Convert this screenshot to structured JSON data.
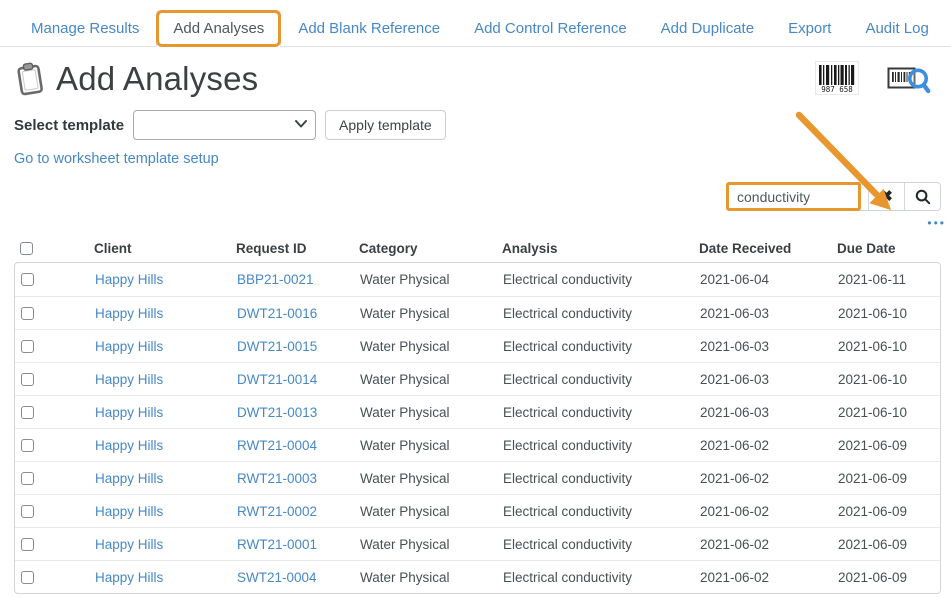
{
  "colors": {
    "link": "#4788c7",
    "annotation": "#e8962e",
    "text": "#494f54"
  },
  "tabs": {
    "items": [
      {
        "label": "Manage Results",
        "active": false
      },
      {
        "label": "Add Analyses",
        "active": true
      },
      {
        "label": "Add Blank Reference",
        "active": false
      },
      {
        "label": "Add Control Reference",
        "active": false
      },
      {
        "label": "Add Duplicate",
        "active": false
      },
      {
        "label": "Export",
        "active": false
      },
      {
        "label": "Audit Log",
        "active": false
      }
    ]
  },
  "header": {
    "title": "Add Analyses",
    "barcode_value": "987 658"
  },
  "template_bar": {
    "label": "Select template",
    "selected_option": "",
    "apply_button_label": "Apply template",
    "setup_link_label": "Go to worksheet template setup"
  },
  "search": {
    "value": "conductivity",
    "clear_icon_glyph": "✖",
    "more_toggle_glyph": "•••"
  },
  "listing": {
    "columns": [
      "Client",
      "Request ID",
      "Category",
      "Analysis",
      "Date Received",
      "Due Date"
    ],
    "rows": [
      {
        "client": "Happy Hills",
        "request_id": "BBP21-0021",
        "category": "Water Physical",
        "analysis": "Electrical conductivity",
        "date_received": "2021-06-04",
        "due_date": "2021-06-11"
      },
      {
        "client": "Happy Hills",
        "request_id": "DWT21-0016",
        "category": "Water Physical",
        "analysis": "Electrical conductivity",
        "date_received": "2021-06-03",
        "due_date": "2021-06-10"
      },
      {
        "client": "Happy Hills",
        "request_id": "DWT21-0015",
        "category": "Water Physical",
        "analysis": "Electrical conductivity",
        "date_received": "2021-06-03",
        "due_date": "2021-06-10"
      },
      {
        "client": "Happy Hills",
        "request_id": "DWT21-0014",
        "category": "Water Physical",
        "analysis": "Electrical conductivity",
        "date_received": "2021-06-03",
        "due_date": "2021-06-10"
      },
      {
        "client": "Happy Hills",
        "request_id": "DWT21-0013",
        "category": "Water Physical",
        "analysis": "Electrical conductivity",
        "date_received": "2021-06-03",
        "due_date": "2021-06-10"
      },
      {
        "client": "Happy Hills",
        "request_id": "RWT21-0004",
        "category": "Water Physical",
        "analysis": "Electrical conductivity",
        "date_received": "2021-06-02",
        "due_date": "2021-06-09"
      },
      {
        "client": "Happy Hills",
        "request_id": "RWT21-0003",
        "category": "Water Physical",
        "analysis": "Electrical conductivity",
        "date_received": "2021-06-02",
        "due_date": "2021-06-09"
      },
      {
        "client": "Happy Hills",
        "request_id": "RWT21-0002",
        "category": "Water Physical",
        "analysis": "Electrical conductivity",
        "date_received": "2021-06-02",
        "due_date": "2021-06-09"
      },
      {
        "client": "Happy Hills",
        "request_id": "RWT21-0001",
        "category": "Water Physical",
        "analysis": "Electrical conductivity",
        "date_received": "2021-06-02",
        "due_date": "2021-06-09"
      },
      {
        "client": "Happy Hills",
        "request_id": "SWT21-0004",
        "category": "Water Physical",
        "analysis": "Electrical conductivity",
        "date_received": "2021-06-02",
        "due_date": "2021-06-09"
      }
    ]
  }
}
